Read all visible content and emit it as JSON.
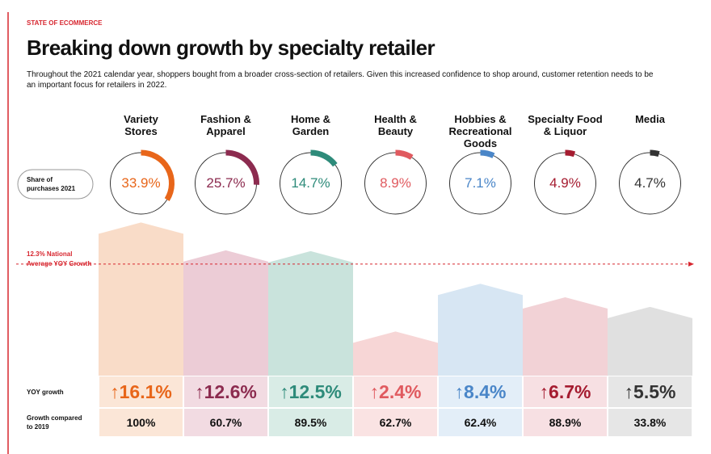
{
  "header": {
    "kicker": "STATE OF ECOMMERCE",
    "title": "Breaking down growth by specialty retailer",
    "text": "Throughout the 2021 calendar year, shoppers bought from a broader cross-section of retailers. Given this increased confidence to shop around, customer retention needs to be an important focus for retailers in 2022."
  },
  "row_labels": {
    "share": "Share of\npurchases 2021",
    "yoy": "YOY growth",
    "vs2019": "Growth compared\nto 2019"
  },
  "national_average": {
    "value": 12.3,
    "label": "12.3% National\nAverage YOY Growth",
    "color": "#d7262f"
  },
  "retailers": [
    {
      "name": "Variety\nStores",
      "share": 33.9,
      "share_label": "33.9%",
      "yoy": 16.1,
      "yoy_label": "16.1%",
      "vs2019": "100%",
      "color": "#e8661a",
      "bg": "#f9dcc8",
      "cell": "#fbe6d7"
    },
    {
      "name": "Fashion &\nApparel",
      "share": 25.7,
      "share_label": "25.7%",
      "yoy": 12.6,
      "yoy_label": "12.6%",
      "vs2019": "60.7%",
      "color": "#8c2b4f",
      "bg": "#ecccd6",
      "cell": "#f2dbe2"
    },
    {
      "name": "Home &\nGarden",
      "share": 14.7,
      "share_label": "14.7%",
      "yoy": 12.5,
      "yoy_label": "12.5%",
      "vs2019": "89.5%",
      "color": "#2e8b7a",
      "bg": "#c9e3dc",
      "cell": "#d9ece6"
    },
    {
      "name": "Health &\nBeauty",
      "share": 8.9,
      "share_label": "8.9%",
      "yoy": 2.4,
      "yoy_label": "2.4%",
      "vs2019": "62.7%",
      "color": "#e05a5f",
      "bg": "#f7d6d6",
      "cell": "#fae3e3"
    },
    {
      "name": "Hobbies &\nRecreational\nGoods",
      "share": 7.1,
      "share_label": "7.1%",
      "yoy": 8.4,
      "yoy_label": "8.4%",
      "vs2019": "62.4%",
      "color": "#4a86c8",
      "bg": "#d7e6f3",
      "cell": "#e3eef8"
    },
    {
      "name": "Specialty Food\n& Liquor",
      "share": 4.9,
      "share_label": "4.9%",
      "yoy": 6.7,
      "yoy_label": "6.7%",
      "vs2019": "88.9%",
      "color": "#a51c30",
      "bg": "#f2d2d6",
      "cell": "#f7e0e3"
    },
    {
      "name": "Media",
      "share": 4.7,
      "share_label": "4.7%",
      "yoy": 5.5,
      "yoy_label": "5.5%",
      "vs2019": "33.8%",
      "color": "#333333",
      "bg": "#e0e0e0",
      "cell": "#e6e6e6"
    }
  ]
}
